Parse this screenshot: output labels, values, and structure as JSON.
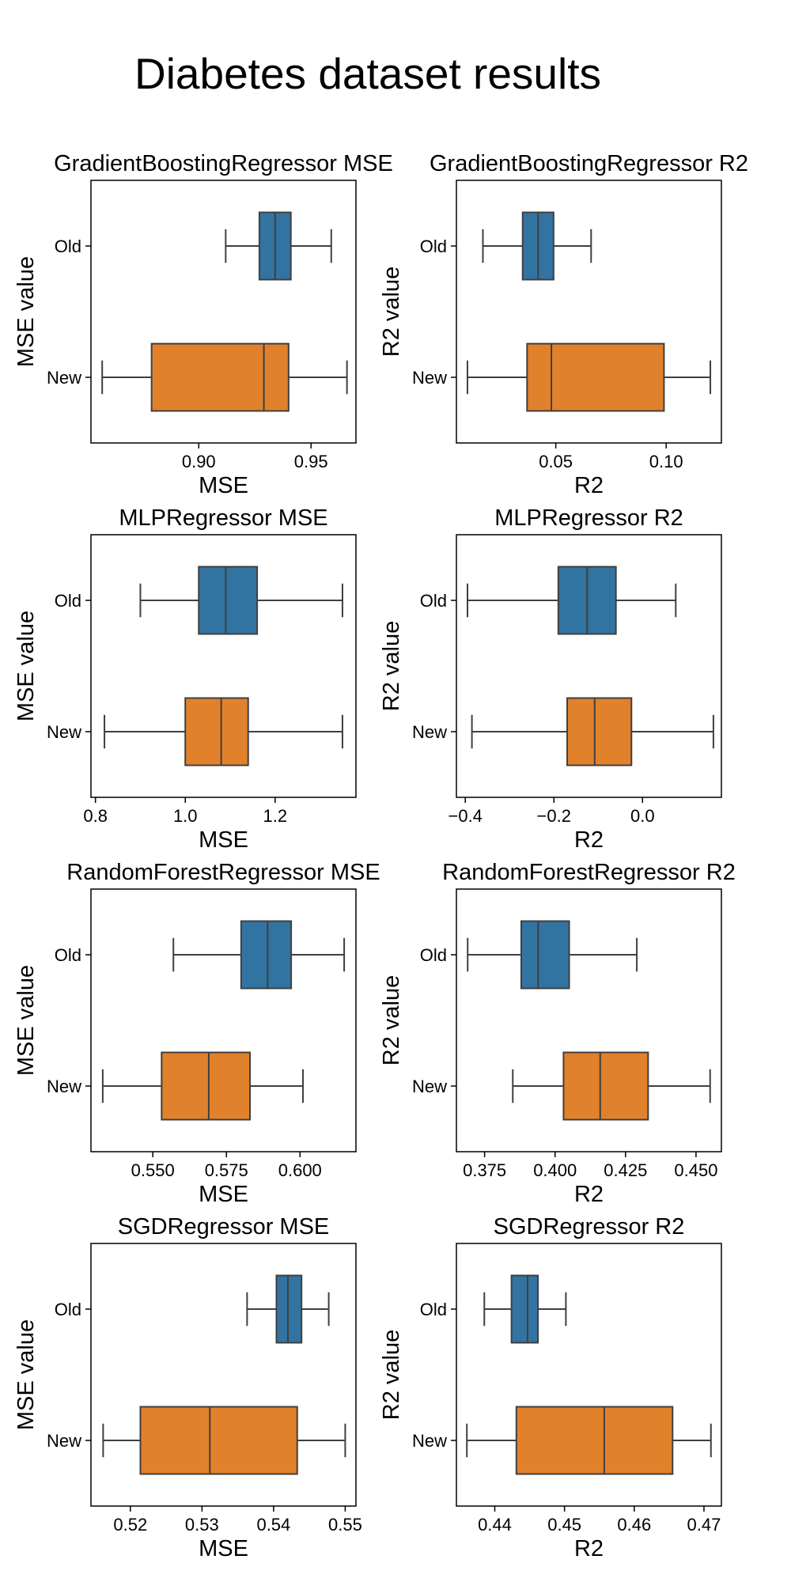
{
  "figure": {
    "title": "Diabetes dataset results"
  },
  "chart_data": [
    {
      "type": "box",
      "title": "GradientBoostingRegressor MSE",
      "xlabel": "MSE",
      "ylabel": "MSE value",
      "categories": [
        "Old",
        "New"
      ],
      "xlim": [
        0.852,
        0.97
      ],
      "xticks": [
        0.9,
        0.95
      ],
      "xtick_labels": [
        "0.90",
        "0.95"
      ],
      "boxes": [
        {
          "name": "Old",
          "whislo": 0.912,
          "q1": 0.927,
          "med": 0.934,
          "q3": 0.941,
          "whishi": 0.959
        },
        {
          "name": "New",
          "whislo": 0.857,
          "q1": 0.879,
          "med": 0.929,
          "q3": 0.94,
          "whishi": 0.966
        }
      ]
    },
    {
      "type": "box",
      "title": "GradientBoostingRegressor R2",
      "xlabel": "R2",
      "ylabel": "R2 value",
      "categories": [
        "Old",
        "New"
      ],
      "xlim": [
        0.005,
        0.125
      ],
      "xticks": [
        0.05,
        0.1
      ],
      "xtick_labels": [
        "0.05",
        "0.10"
      ],
      "boxes": [
        {
          "name": "Old",
          "whislo": 0.017,
          "q1": 0.035,
          "med": 0.042,
          "q3": 0.049,
          "whishi": 0.066
        },
        {
          "name": "New",
          "whislo": 0.01,
          "q1": 0.037,
          "med": 0.048,
          "q3": 0.099,
          "whishi": 0.12
        }
      ]
    },
    {
      "type": "box",
      "title": "MLPRegressor MSE",
      "xlabel": "MSE",
      "ylabel": "MSE value",
      "categories": [
        "Old",
        "New"
      ],
      "xlim": [
        0.79,
        1.38
      ],
      "xticks": [
        0.8,
        1.0,
        1.2
      ],
      "xtick_labels": [
        "0.8",
        "1.0",
        "1.2"
      ],
      "boxes": [
        {
          "name": "Old",
          "whislo": 0.9,
          "q1": 1.03,
          "med": 1.09,
          "q3": 1.16,
          "whishi": 1.35
        },
        {
          "name": "New",
          "whislo": 0.82,
          "q1": 1.0,
          "med": 1.08,
          "q3": 1.14,
          "whishi": 1.35
        }
      ]
    },
    {
      "type": "box",
      "title": "MLPRegressor R2",
      "xlabel": "R2",
      "ylabel": "R2 value",
      "categories": [
        "Old",
        "New"
      ],
      "xlim": [
        -0.42,
        0.178
      ],
      "xticks": [
        -0.4,
        -0.2,
        0.0
      ],
      "xtick_labels": [
        "−0.4",
        "−0.2",
        "0.0"
      ],
      "boxes": [
        {
          "name": "Old",
          "whislo": -0.395,
          "q1": -0.19,
          "med": -0.125,
          "q3": -0.06,
          "whishi": 0.075
        },
        {
          "name": "New",
          "whislo": -0.385,
          "q1": -0.17,
          "med": -0.108,
          "q3": -0.025,
          "whishi": 0.16
        }
      ]
    },
    {
      "type": "box",
      "title": "RandomForestRegressor MSE",
      "xlabel": "MSE",
      "ylabel": "MSE value",
      "categories": [
        "Old",
        "New"
      ],
      "xlim": [
        0.529,
        0.619
      ],
      "xticks": [
        0.55,
        0.575,
        0.6
      ],
      "xtick_labels": [
        "0.550",
        "0.575",
        "0.600"
      ],
      "boxes": [
        {
          "name": "Old",
          "whislo": 0.557,
          "q1": 0.58,
          "med": 0.589,
          "q3": 0.597,
          "whishi": 0.615
        },
        {
          "name": "New",
          "whislo": 0.533,
          "q1": 0.553,
          "med": 0.569,
          "q3": 0.583,
          "whishi": 0.601
        }
      ]
    },
    {
      "type": "box",
      "title": "RandomForestRegressor R2",
      "xlabel": "R2",
      "ylabel": "R2 value",
      "categories": [
        "Old",
        "New"
      ],
      "xlim": [
        0.365,
        0.459
      ],
      "xticks": [
        0.375,
        0.4,
        0.425,
        0.45
      ],
      "xtick_labels": [
        "0.375",
        "0.400",
        "0.425",
        "0.450"
      ],
      "boxes": [
        {
          "name": "Old",
          "whislo": 0.369,
          "q1": 0.388,
          "med": 0.394,
          "q3": 0.405,
          "whishi": 0.429
        },
        {
          "name": "New",
          "whislo": 0.385,
          "q1": 0.403,
          "med": 0.416,
          "q3": 0.433,
          "whishi": 0.455
        }
      ]
    },
    {
      "type": "box",
      "title": "SGDRegressor MSE",
      "xlabel": "MSE",
      "ylabel": "MSE value",
      "categories": [
        "Old",
        "New"
      ],
      "xlim": [
        0.5145,
        0.5515
      ],
      "xticks": [
        0.52,
        0.53,
        0.54,
        0.55
      ],
      "xtick_labels": [
        "0.52",
        "0.53",
        "0.54",
        "0.55"
      ],
      "boxes": [
        {
          "name": "Old",
          "whislo": 0.5363,
          "q1": 0.5404,
          "med": 0.542,
          "q3": 0.5439,
          "whishi": 0.5477
        },
        {
          "name": "New",
          "whislo": 0.5162,
          "q1": 0.5214,
          "med": 0.5311,
          "q3": 0.5433,
          "whishi": 0.55
        }
      ]
    },
    {
      "type": "box",
      "title": "SGDRegressor R2",
      "xlabel": "R2",
      "ylabel": "R2 value",
      "categories": [
        "Old",
        "New"
      ],
      "xlim": [
        0.4345,
        0.4725
      ],
      "xticks": [
        0.44,
        0.45,
        0.46,
        0.47
      ],
      "xtick_labels": [
        "0.44",
        "0.45",
        "0.46",
        "0.47"
      ],
      "boxes": [
        {
          "name": "Old",
          "whislo": 0.4385,
          "q1": 0.4424,
          "med": 0.4447,
          "q3": 0.4462,
          "whishi": 0.4502
        },
        {
          "name": "New",
          "whislo": 0.436,
          "q1": 0.4431,
          "med": 0.4557,
          "q3": 0.4655,
          "whishi": 0.471
        }
      ]
    }
  ],
  "colors": {
    "old": "#3274a1",
    "new": "#e1812c",
    "edge": "#3f3f3f",
    "axes": "#000000"
  }
}
